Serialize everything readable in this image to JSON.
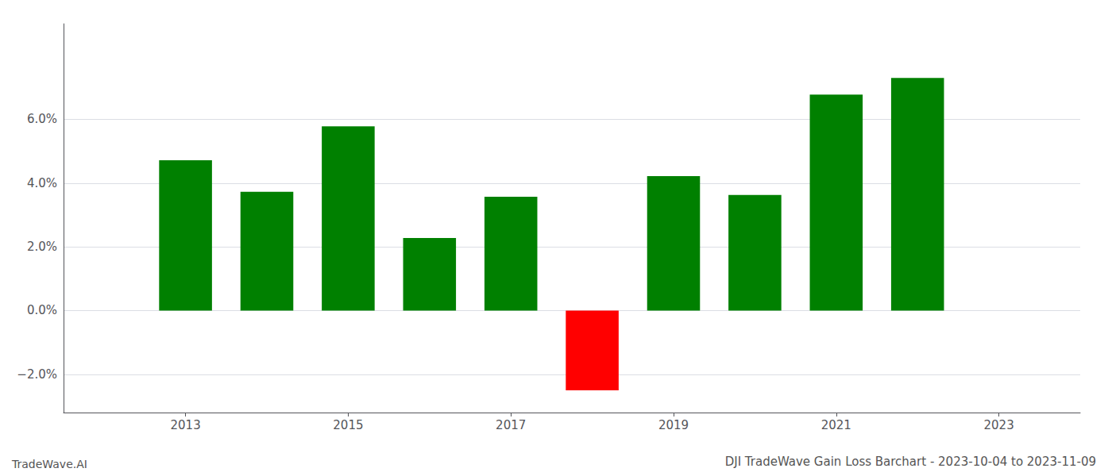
{
  "chart_data": {
    "type": "bar",
    "title": "DJI TradeWave Gain Loss Barchart - 2023-10-04 to 2023-11-09",
    "annotations": [
      "TradeWave.AI"
    ],
    "x": [
      2013,
      2014,
      2015,
      2016,
      2017,
      2018,
      2019,
      2020,
      2021,
      2022
    ],
    "values": [
      4.72,
      3.73,
      5.78,
      2.28,
      3.57,
      -2.5,
      4.22,
      3.63,
      6.78,
      7.3
    ],
    "colors": [
      "#008000",
      "#008000",
      "#008000",
      "#008000",
      "#008000",
      "#ff0000",
      "#008000",
      "#008000",
      "#008000",
      "#008000"
    ],
    "xlim": [
      2011.5,
      2024.0
    ],
    "xticks": [
      2013,
      2015,
      2017,
      2019,
      2021,
      2023
    ],
    "ylim": [
      -3.2,
      9.0
    ],
    "yticks": [
      {
        "value": -2.0,
        "label": "−2.0%"
      },
      {
        "value": 0.0,
        "label": "0.0%"
      },
      {
        "value": 2.0,
        "label": "2.0%"
      },
      {
        "value": 4.0,
        "label": "4.0%"
      },
      {
        "value": 6.0,
        "label": "6.0%"
      }
    ],
    "grid": true
  }
}
